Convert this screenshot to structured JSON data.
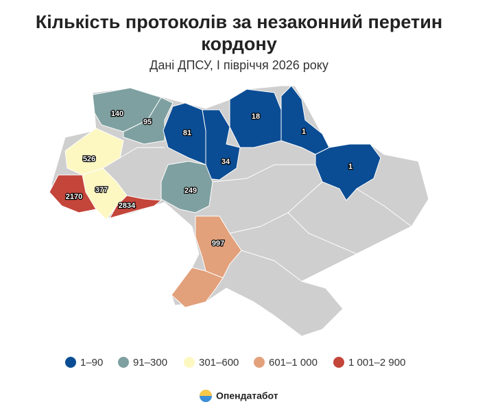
{
  "title": "Кількість протоколів за незаконний перетин кордону",
  "subtitle": "Дані ДПСУ, І півріччя 2026 року",
  "regions": [
    {
      "value": 140,
      "color": "#7fa0a0"
    },
    {
      "value": 95,
      "color": "#7fa0a0"
    },
    {
      "value": 526,
      "color": "#fdf7c2"
    },
    {
      "value": 377,
      "color": "#fdf7c2"
    },
    {
      "value": 2170,
      "color": "#c4453a"
    },
    {
      "value": 2834,
      "color": "#c4453a"
    },
    {
      "value": 81,
      "color": "#0b4d94"
    },
    {
      "value": 34,
      "color": "#0b4d94"
    },
    {
      "value": 18,
      "color": "#0b4d94"
    },
    {
      "value": 1,
      "color": "#0b4d94"
    },
    {
      "value": 1,
      "color": "#0b4d94"
    },
    {
      "value": 249,
      "color": "#7fa0a0"
    },
    {
      "value": 997,
      "color": "#e2a07b"
    }
  ],
  "legend": [
    {
      "label": "1–90",
      "color": "#0b4d94"
    },
    {
      "label": "91–300",
      "color": "#7fa0a0"
    },
    {
      "label": "301–600",
      "color": "#fdf7c2"
    },
    {
      "label": "601–1 000",
      "color": "#e2a07b"
    },
    {
      "label": "1 001–2 900",
      "color": "#c4453a"
    }
  ],
  "brand": "Опендатабот"
}
